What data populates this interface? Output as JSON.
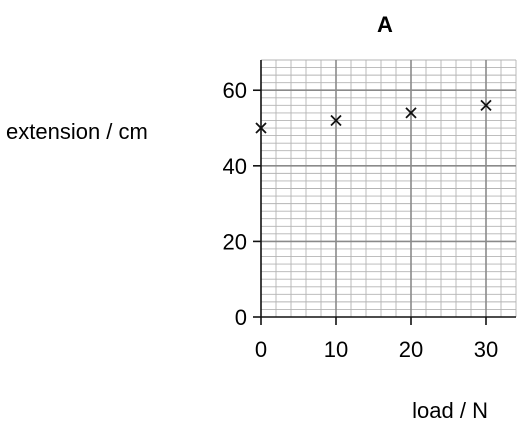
{
  "chart_data": {
    "type": "scatter",
    "title": "A",
    "xlabel": "load / N",
    "ylabel": "extension / cm",
    "xlim": [
      0,
      34
    ],
    "ylim": [
      0,
      68
    ],
    "x_ticks": [
      0,
      10,
      20,
      30
    ],
    "y_ticks": [
      0,
      20,
      40,
      60
    ],
    "x_tick_labels": [
      "0",
      "10",
      "20",
      "30"
    ],
    "y_tick_labels": [
      "0",
      "20",
      "40",
      "60"
    ],
    "grid": true,
    "marker": "cross",
    "series": [
      {
        "x": [
          0,
          10,
          20,
          30
        ],
        "y": [
          50,
          52,
          54,
          56
        ]
      }
    ]
  }
}
